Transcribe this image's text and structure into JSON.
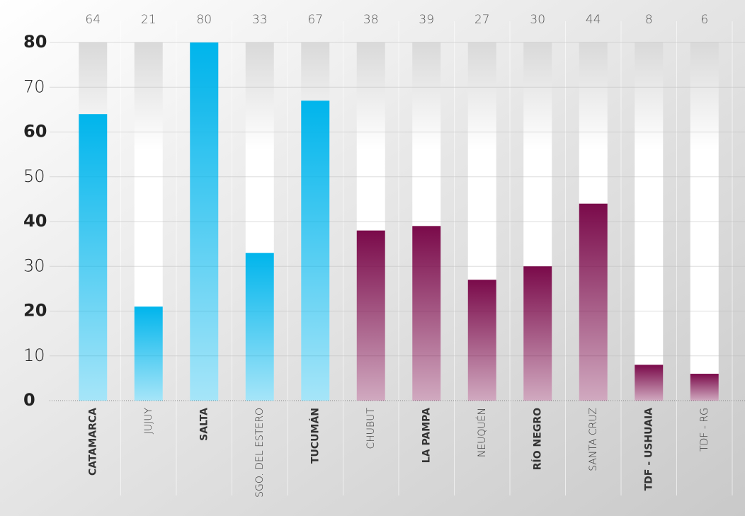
{
  "chart_data": {
    "type": "bar",
    "categories": [
      "CATAMARCA",
      "JUJUY",
      "SALTA",
      "SGO. DEL ESTERO",
      "TUCUMÁN",
      "CHUBUT",
      "LA PAMPA",
      "NEUQUÉN",
      "RÍO NEGRO",
      "SANTA CRUZ",
      "TDF - USHUAIA",
      "TDF - RG"
    ],
    "values": [
      64,
      21,
      80,
      33,
      67,
      38,
      39,
      27,
      30,
      44,
      8,
      6
    ],
    "colors": [
      "#00b5ec",
      "#00b5ec",
      "#00b5ec",
      "#00b5ec",
      "#00b5ec",
      "#7a0a4a",
      "#7a0a4a",
      "#7a0a4a",
      "#7a0a4a",
      "#7a0a4a",
      "#7a0a4a",
      "#7a0a4a"
    ],
    "ylim": [
      0,
      80
    ],
    "yticks": [
      0,
      10,
      20,
      30,
      40,
      50,
      60,
      70,
      80
    ],
    "grid": true
  }
}
